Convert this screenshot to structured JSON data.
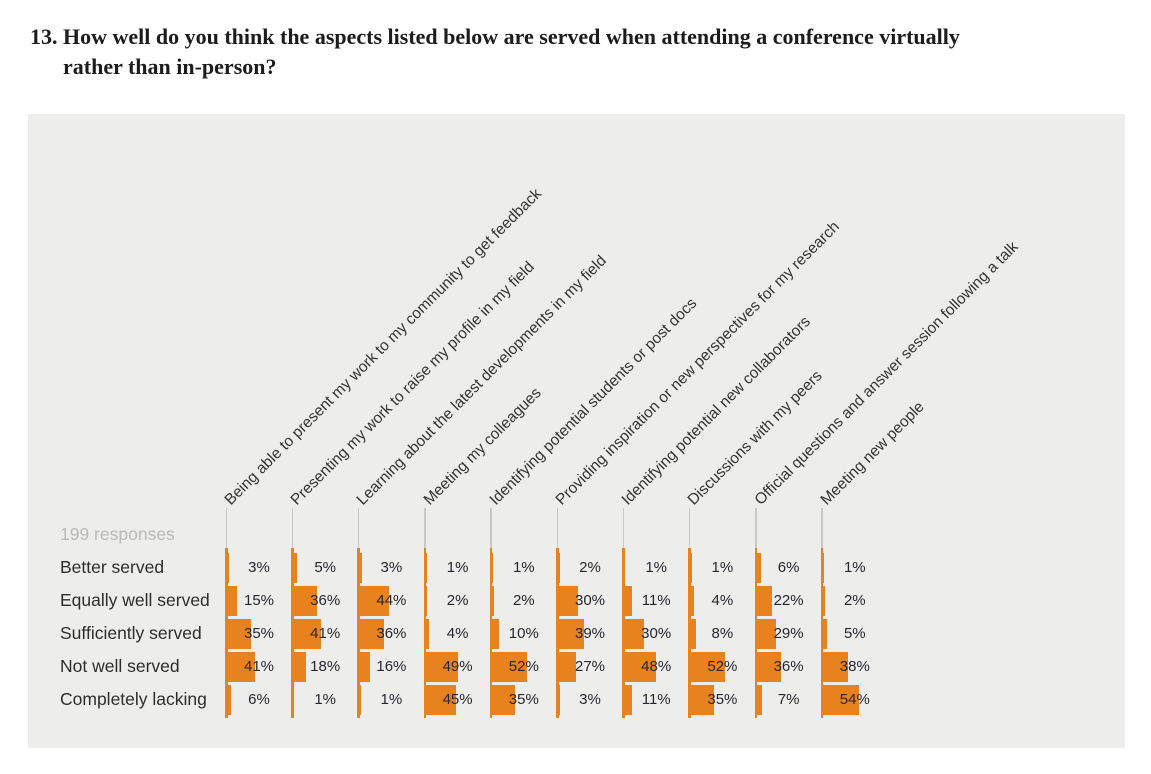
{
  "title": {
    "number": "13.",
    "text": "How well do you think the aspects listed below are served when attending a conference virtually rather than in-person?"
  },
  "chart_data": {
    "type": "bar",
    "title": "13. How well do you think the aspects listed below are served when attending a conference virtually rather than in-person?",
    "responses": "199 responses",
    "unit": "percent",
    "orientation": "horizontal-small-multiples",
    "rows": [
      "Better served",
      "Equally well served",
      "Sufficiently served",
      "Not well served",
      "Completely lacking"
    ],
    "categories": [
      "Being able to present my work to my community to get feedback",
      "Presenting my work to raise my profile in my field",
      "Learning about the latest developments in my field",
      "Meeting my colleagues",
      "Identifying potential students or post docs",
      "Providing inspiration or new perspectives for my research",
      "Identifying potential new collaborators",
      "Discussions with my peers",
      "Official questions and answer session following a talk",
      "Meeting new people"
    ],
    "series": [
      {
        "name": "Better served",
        "values": [
          3,
          5,
          3,
          1,
          1,
          2,
          1,
          1,
          6,
          1
        ]
      },
      {
        "name": "Equally well served",
        "values": [
          15,
          36,
          44,
          2,
          2,
          30,
          11,
          4,
          22,
          2
        ]
      },
      {
        "name": "Sufficiently served",
        "values": [
          35,
          41,
          36,
          4,
          10,
          39,
          30,
          8,
          29,
          5
        ]
      },
      {
        "name": "Not well served",
        "values": [
          41,
          18,
          16,
          49,
          52,
          27,
          48,
          52,
          36,
          38
        ]
      },
      {
        "name": "Completely lacking",
        "values": [
          6,
          1,
          1,
          45,
          35,
          3,
          11,
          35,
          7,
          54
        ]
      }
    ],
    "value_label_format": "{value}%",
    "colors": {
      "bar": "#E8821E",
      "panel_background": "#EDEDEC",
      "column_tick": "#C8C8C8",
      "row_label_text": "#2D2D2D",
      "value_text": "#26262E",
      "responses_text": "#B9B9B9",
      "category_text": "#333333",
      "title_text": "#1C1C1C"
    },
    "layout_hints": {
      "category_labels_rotation_deg": -45,
      "grid": false,
      "legend": false,
      "xlim_percent": [
        0,
        100
      ]
    }
  }
}
